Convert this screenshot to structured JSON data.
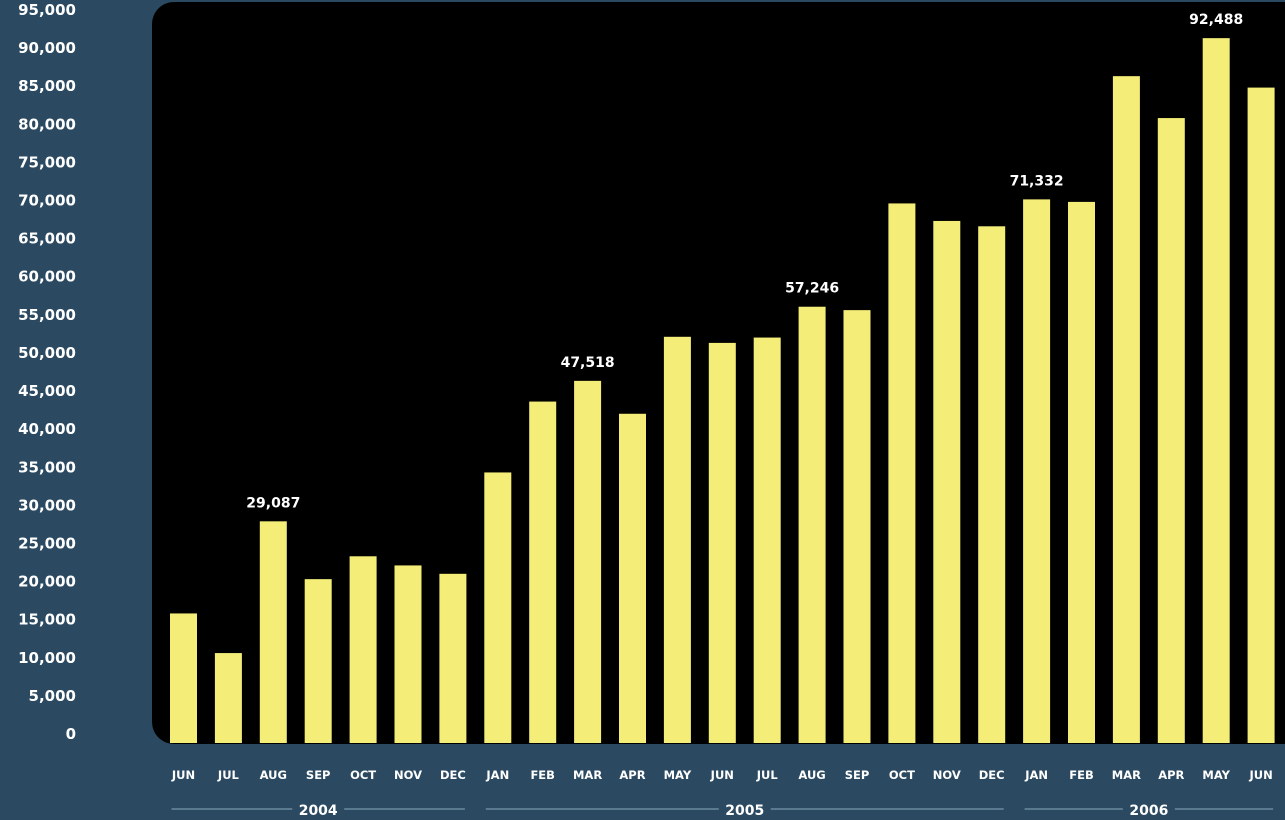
{
  "chart_data": {
    "type": "bar",
    "title": "",
    "xlabel": "",
    "ylabel": "",
    "ylim": [
      0,
      95000
    ],
    "y_ticks": [
      "0",
      "5,000",
      "10,000",
      "15,000",
      "20,000",
      "25,000",
      "30,000",
      "35,000",
      "40,000",
      "45,000",
      "50,000",
      "55,000",
      "60,000",
      "65,000",
      "70,000",
      "75,000",
      "80,000",
      "85,000",
      "90,000",
      "95,000"
    ],
    "y_tick_values": [
      0,
      5000,
      10000,
      15000,
      20000,
      25000,
      30000,
      35000,
      40000,
      45000,
      50000,
      55000,
      60000,
      65000,
      70000,
      75000,
      80000,
      85000,
      90000,
      95000
    ],
    "categories": [
      "JUN",
      "JUL",
      "AUG",
      "SEP",
      "OCT",
      "NOV",
      "DEC",
      "JAN",
      "FEB",
      "MAR",
      "APR",
      "MAY",
      "JUN",
      "JUL",
      "AUG",
      "SEP",
      "OCT",
      "NOV",
      "DEC",
      "JAN",
      "FEB",
      "MAR",
      "APR",
      "MAY",
      "JUN"
    ],
    "values": [
      17000,
      11800,
      29087,
      21500,
      24500,
      23300,
      22200,
      35500,
      44800,
      47518,
      43200,
      53300,
      52500,
      53200,
      57246,
      56800,
      70800,
      68500,
      67800,
      71332,
      71000,
      87500,
      82000,
      92488,
      86000
    ],
    "data_labels": [
      {
        "index": 2,
        "text": "29,087"
      },
      {
        "index": 9,
        "text": "47,518"
      },
      {
        "index": 14,
        "text": "57,246"
      },
      {
        "index": 19,
        "text": "71,332"
      },
      {
        "index": 23,
        "text": "92,488"
      }
    ],
    "year_groups": [
      {
        "label": "2004",
        "start": 0,
        "end": 6
      },
      {
        "label": "2005",
        "start": 7,
        "end": 18
      },
      {
        "label": "2006",
        "start": 19,
        "end": 24
      }
    ],
    "grid": false,
    "colors": {
      "background": "#2b4a62",
      "plot_area": "#000000",
      "bar": "#f4ee78",
      "text": "#ffffff",
      "year_line": "#6b8aa0"
    }
  }
}
